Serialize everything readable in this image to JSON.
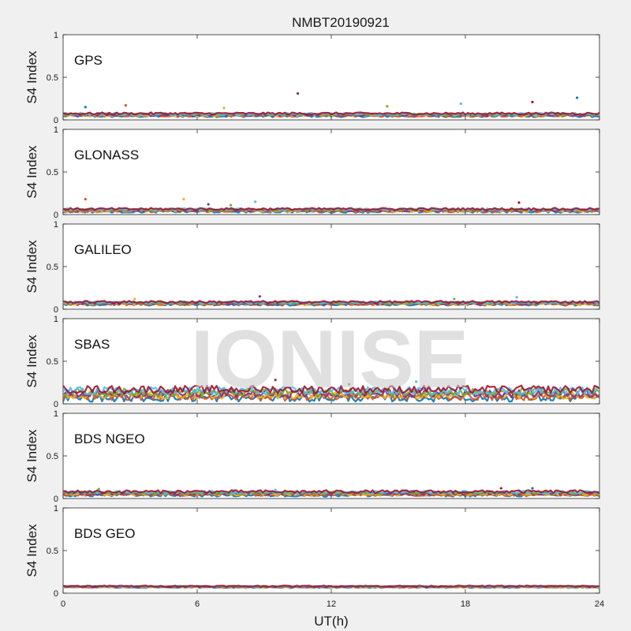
{
  "figure": {
    "title": "NMBT20190921",
    "watermark": "IONISE"
  },
  "chart_data": [
    {
      "type": "scatter",
      "panel_label": "GPS",
      "ylabel": "S4 Index",
      "xlim": [
        0,
        24
      ],
      "ylim": [
        0,
        1
      ],
      "yticks": [
        0,
        0.5,
        1
      ],
      "ytick_labels": [
        "0",
        "0.5",
        "1"
      ],
      "baseline": 0.06,
      "spread": 0.03,
      "spikes": [
        {
          "x": 1.0,
          "y": 0.15
        },
        {
          "x": 2.8,
          "y": 0.17
        },
        {
          "x": 7.2,
          "y": 0.14
        },
        {
          "x": 10.5,
          "y": 0.31
        },
        {
          "x": 14.5,
          "y": 0.16
        },
        {
          "x": 17.8,
          "y": 0.19
        },
        {
          "x": 21.0,
          "y": 0.21
        },
        {
          "x": 23.0,
          "y": 0.26
        }
      ]
    },
    {
      "type": "scatter",
      "panel_label": "GLONASS",
      "ylabel": "S4 Index",
      "xlim": [
        0,
        24
      ],
      "ylim": [
        0,
        1
      ],
      "yticks": [
        0,
        0.5,
        1
      ],
      "ytick_labels": [
        "0",
        "0.5",
        "1"
      ],
      "baseline": 0.05,
      "spread": 0.03,
      "spikes": [
        {
          "x": 1.0,
          "y": 0.18
        },
        {
          "x": 5.4,
          "y": 0.18
        },
        {
          "x": 6.5,
          "y": 0.12
        },
        {
          "x": 7.5,
          "y": 0.11
        },
        {
          "x": 8.6,
          "y": 0.15
        },
        {
          "x": 20.4,
          "y": 0.14
        }
      ]
    },
    {
      "type": "scatter",
      "panel_label": "GALILEO",
      "ylabel": "S4 Index",
      "xlim": [
        0,
        24
      ],
      "ylim": [
        0,
        1
      ],
      "yticks": [
        0,
        0.5,
        1
      ],
      "ytick_labels": [
        "0",
        "0.5",
        "1"
      ],
      "baseline": 0.07,
      "spread": 0.03,
      "spikes": [
        {
          "x": 3.2,
          "y": 0.12
        },
        {
          "x": 8.8,
          "y": 0.15
        },
        {
          "x": 17.5,
          "y": 0.12
        },
        {
          "x": 20.3,
          "y": 0.14
        }
      ]
    },
    {
      "type": "scatter",
      "panel_label": "SBAS",
      "ylabel": "S4 Index",
      "xlim": [
        0,
        24
      ],
      "ylim": [
        0,
        1
      ],
      "yticks": [
        0,
        0.5,
        1
      ],
      "ytick_labels": [
        "0",
        "0.5",
        "1"
      ],
      "baseline": 0.12,
      "spread": 0.1,
      "spikes": [
        {
          "x": 9.5,
          "y": 0.28
        },
        {
          "x": 12.8,
          "y": 0.23
        },
        {
          "x": 15.8,
          "y": 0.26
        }
      ]
    },
    {
      "type": "scatter",
      "panel_label": "BDS NGEO",
      "ylabel": "S4 Index",
      "xlim": [
        0,
        24
      ],
      "ylim": [
        0,
        1
      ],
      "yticks": [
        0,
        0.5,
        1
      ],
      "ytick_labels": [
        "0",
        "0.5",
        "1"
      ],
      "baseline": 0.06,
      "spread": 0.04,
      "spikes": [
        {
          "x": 1.6,
          "y": 0.11
        },
        {
          "x": 9.5,
          "y": 0.1
        },
        {
          "x": 19.6,
          "y": 0.12
        },
        {
          "x": 21.0,
          "y": 0.12
        }
      ]
    },
    {
      "type": "scatter",
      "panel_label": "BDS GEO",
      "ylabel": "S4 Index",
      "xlim": [
        0,
        24
      ],
      "ylim": [
        0,
        1
      ],
      "yticks": [
        0,
        0.5,
        1
      ],
      "ytick_labels": [
        "0",
        "0.5",
        "1"
      ],
      "baseline": 0.075,
      "spread": 0.015,
      "spikes": []
    }
  ],
  "x_axis": {
    "label": "UT(h)",
    "ticks": [
      0,
      6,
      12,
      18,
      24
    ],
    "tick_labels": [
      "0",
      "6",
      "12",
      "18",
      "24"
    ]
  },
  "series_colors": [
    "#0072BD",
    "#D95319",
    "#EDB120",
    "#7E2F8E",
    "#77AC30",
    "#4DBEEE",
    "#A2142F"
  ]
}
